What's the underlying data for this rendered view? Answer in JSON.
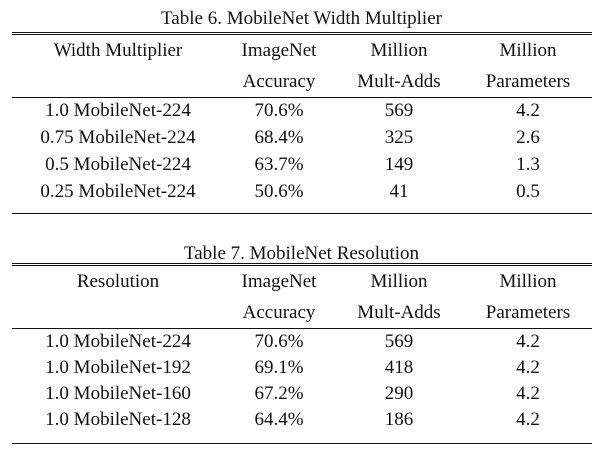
{
  "tables": [
    {
      "caption": "Table 6. MobileNet Width Multiplier",
      "header_row1": [
        "Width Multiplier",
        "ImageNet",
        "Million",
        "Million"
      ],
      "header_row2": [
        "",
        "Accuracy",
        "Mult-Adds",
        "Parameters"
      ],
      "rows": [
        [
          "1.0 MobileNet-224",
          "70.6%",
          "569",
          "4.2"
        ],
        [
          "0.75 MobileNet-224",
          "68.4%",
          "325",
          "2.6"
        ],
        [
          "0.5 MobileNet-224",
          "63.7%",
          "149",
          "1.3"
        ],
        [
          "0.25 MobileNet-224",
          "50.6%",
          "41",
          "0.5"
        ]
      ]
    },
    {
      "caption": "Table 7. MobileNet Resolution",
      "header_row1": [
        "Resolution",
        "ImageNet",
        "Million",
        "Million"
      ],
      "header_row2": [
        "",
        "Accuracy",
        "Mult-Adds",
        "Parameters"
      ],
      "rows": [
        [
          "1.0 MobileNet-224",
          "70.6%",
          "569",
          "4.2"
        ],
        [
          "1.0 MobileNet-192",
          "69.1%",
          "418",
          "4.2"
        ],
        [
          "1.0 MobileNet-160",
          "67.2%",
          "290",
          "4.2"
        ],
        [
          "1.0 MobileNet-128",
          "64.4%",
          "186",
          "4.2"
        ]
      ]
    }
  ]
}
